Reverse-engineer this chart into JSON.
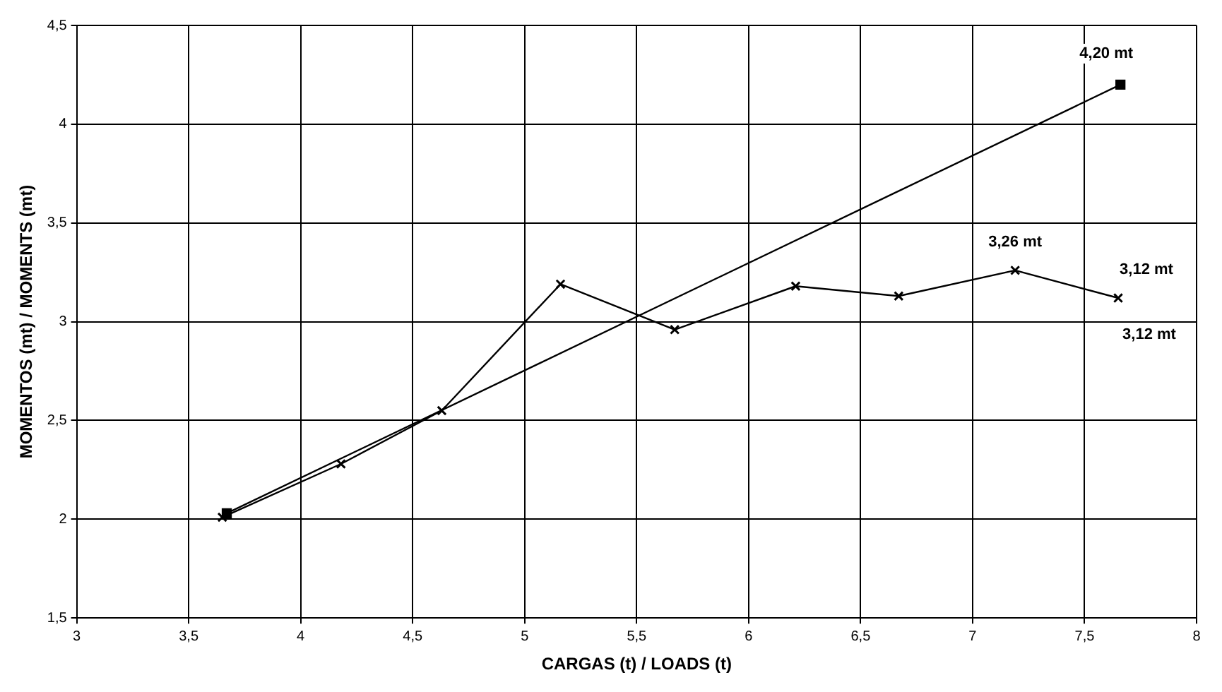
{
  "chart_data": {
    "type": "line",
    "xlabel": "CARGAS (t) / LOADS (t)",
    "ylabel": "MOMENTOS (mt) / MOMENTS (mt)",
    "xlim": [
      3,
      8
    ],
    "xticks": [
      3,
      {
        "value": 3.5,
        "label": "3,5"
      },
      4,
      {
        "value": 4.5,
        "label": "4,5"
      },
      5,
      {
        "value": 5.5,
        "label": "5,5"
      },
      6,
      {
        "value": 6.5,
        "label": "6,5"
      },
      7,
      {
        "value": 7.5,
        "label": "7,5"
      },
      8
    ],
    "ylim": [
      1.5,
      4.5
    ],
    "yticks": [
      {
        "value": 1.5,
        "label": "1,5"
      },
      2,
      {
        "value": 2.5,
        "label": "2,5"
      },
      3,
      {
        "value": 3.5,
        "label": "3,5"
      },
      4,
      {
        "value": 4.5,
        "label": "4,5"
      }
    ],
    "grid": true,
    "legend": false,
    "series": [
      {
        "color": "#000000",
        "marker": "square",
        "x": [
          3.67,
          7.66
        ],
        "values": [
          2.03,
          4.2
        ]
      },
      {
        "color": "#000000",
        "marker": "cross",
        "x": [
          3.65,
          4.18,
          4.63,
          5.16,
          5.67,
          6.21,
          6.67,
          7.19,
          7.65
        ],
        "values": [
          2.01,
          2.28,
          2.55,
          3.19,
          2.96,
          3.18,
          3.13,
          3.26,
          3.12
        ]
      }
    ],
    "annotations": [
      {
        "text": "4,20 mt",
        "x": 7.66,
        "y": 4.2
      },
      {
        "text": "3,26 mt",
        "x": 7.19,
        "y": 3.26
      },
      {
        "text": "3,12 mt",
        "x": 7.65,
        "y": 3.12
      },
      {
        "text": "3,12 mt",
        "x": 7.65,
        "y": 3.12
      }
    ]
  }
}
